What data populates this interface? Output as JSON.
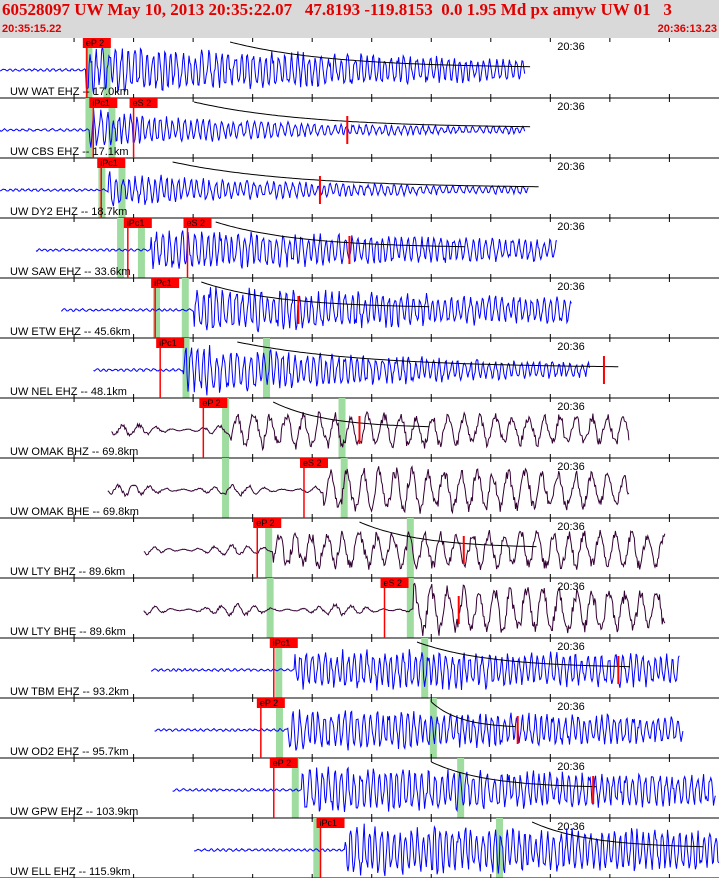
{
  "header": {
    "title": "60528097 UW May 10, 2013 20:35:22.07   47.8193 -119.8153  0.0 1.95 Md px amyw UW 01   3",
    "start_time": "20:35:15.22",
    "end_time": "20:36:13.23"
  },
  "colors": {
    "header_bg": "#d9d9d9",
    "header_text": "#e00000",
    "trace_ehz": "#0000ff",
    "trace_bh": "#330033",
    "pick_marker": "#ff0000",
    "phase_window": "#9fdc9f",
    "decay_curve": "#000000",
    "axis": "#000000"
  },
  "time_tick_label": "20:36",
  "traces": [
    {
      "label": "UW WAT EHZ -- 17.0km",
      "type": "ehz",
      "picks": [
        {
          "text": "eP 2",
          "t": 0.118
        }
      ],
      "green": [
        0.123,
        0.148
      ],
      "sig": [
        0.0,
        0.73
      ],
      "onset": 0.12,
      "amp": 1.0,
      "decay": 0.9,
      "curve": [
        0.32,
        0.74
      ]
    },
    {
      "label": "UW CBS EHZ -- 17.1km",
      "type": "ehz",
      "picks": [
        {
          "text": "iPc1",
          "t": 0.127
        },
        {
          "text": "eS 2",
          "t": 0.183
        }
      ],
      "green": [
        0.123,
        0.155
      ],
      "sig": [
        0.0,
        0.73
      ],
      "onset": 0.125,
      "amp": 0.8,
      "decay": 2.8,
      "curve": [
        0.27,
        0.74
      ],
      "tail": 0.483
    },
    {
      "label": "UW DY2 EHZ -- 18.7km",
      "type": "ehz",
      "picks": [
        {
          "text": "iPc1",
          "t": 0.138
        }
      ],
      "green": [
        0.141,
        0.169
      ],
      "sig": [
        0.0,
        0.735
      ],
      "onset": 0.15,
      "amp": 0.7,
      "decay": 2.5,
      "curve": [
        0.24,
        0.75
      ],
      "tail": 0.445
    },
    {
      "label": "UW SAW EHZ -- 33.6km",
      "type": "ehz",
      "picks": [
        {
          "text": "iPc1",
          "t": 0.175
        },
        {
          "text": "eS 2",
          "t": 0.258
        }
      ],
      "green": [
        0.167,
        0.196
      ],
      "sig": [
        0.05,
        0.775
      ],
      "onset": 0.21,
      "amp": 0.8,
      "decay": 0.8,
      "curve": [
        0.3,
        0.65
      ],
      "tail": 0.486
    },
    {
      "label": "UW ETW EHZ -- 45.6km",
      "type": "ehz",
      "picks": [
        {
          "text": "iPc1",
          "t": 0.213
        }
      ],
      "green": [
        0.217,
        0.257
      ],
      "sig": [
        0.085,
        0.795
      ],
      "onset": 0.27,
      "amp": 0.9,
      "decay": 0.7,
      "curve": [
        0.28,
        0.6
      ],
      "tail": 0.415
    },
    {
      "label": "UW NEL EHZ -- 48.1km",
      "type": "ehz",
      "picks": [
        {
          "text": "iPc1",
          "t": 0.22
        }
      ],
      "green": [
        0.258,
        0.37
      ],
      "sig": [
        0.13,
        0.82
      ],
      "onset": 0.255,
      "amp": 1.0,
      "decay": 1.4,
      "curve": [
        0.33,
        0.86
      ],
      "tail": 0.84
    },
    {
      "label": "UW OMAK BHZ -- 69.8km",
      "type": "bh",
      "picks": [
        {
          "text": "eP 2",
          "t": 0.28
        }
      ],
      "green": [
        0.313,
        0.475
      ],
      "sig": [
        0.155,
        0.875
      ],
      "onset": 0.32,
      "amp": 0.7,
      "decay": 0.2,
      "curve": [
        0.38,
        0.6
      ],
      "tail": 0.5
    },
    {
      "label": "UW OMAK BHE -- 69.8km",
      "type": "bh",
      "picks": [
        {
          "text": "eS 2",
          "t": 0.42
        }
      ],
      "green": [
        0.313,
        0.478
      ],
      "sig": [
        0.15,
        0.875
      ],
      "onset": 0.45,
      "amp": 0.9,
      "decay": 0.2
    },
    {
      "label": "UW LTY BHZ -- 89.6km",
      "type": "bh",
      "picks": [
        {
          "text": "eP 2",
          "t": 0.355
        }
      ],
      "green": [
        0.373,
        0.57
      ],
      "sig": [
        0.2,
        0.925
      ],
      "onset": 0.38,
      "amp": 0.7,
      "decay": 0.0,
      "curve": [
        0.5,
        0.75
      ],
      "tail": 0.645
    },
    {
      "label": "UW LTY BHE -- 89.6km",
      "type": "bh",
      "picks": [
        {
          "text": "eS 2",
          "t": 0.532
        }
      ],
      "green": [
        0.375,
        0.57
      ],
      "sig": [
        0.2,
        0.925
      ],
      "onset": 0.575,
      "amp": 1.0,
      "decay": 0.3,
      "tail": 0.638
    },
    {
      "label": "UW TBM EHZ -- 93.2km",
      "type": "ehz",
      "picks": [
        {
          "text": "iPc1",
          "t": 0.378
        }
      ],
      "green": [
        0.387,
        0.59
      ],
      "sig": [
        0.21,
        0.945
      ],
      "onset": 0.41,
      "amp": 0.8,
      "decay": 0.3,
      "curve": [
        0.58,
        0.88
      ],
      "tail": 0.86
    },
    {
      "label": "UW OD2 EHZ -- 95.7km",
      "type": "ehz",
      "picks": [
        {
          "text": "eP 2",
          "t": 0.36
        }
      ],
      "green": [
        0.388,
        0.602
      ],
      "sig": [
        0.215,
        0.95
      ],
      "onset": 0.4,
      "amp": 0.8,
      "decay": 0.5,
      "curve": [
        0.6,
        0.72
      ],
      "tail": 0.72
    },
    {
      "label": "UW GPW EHZ -- 103.9km",
      "type": "ehz",
      "picks": [
        {
          "text": "eP 2",
          "t": 0.378
        }
      ],
      "green": [
        0.41,
        0.64
      ],
      "sig": [
        0.24,
        0.995
      ],
      "onset": 0.42,
      "amp": 0.9,
      "decay": 0.5,
      "curve": [
        0.6,
        0.83
      ],
      "tail": 0.825
    },
    {
      "label": "UW ELL EHZ -- 115.9km",
      "type": "ehz",
      "picks": [
        {
          "text": "iPc1",
          "t": 0.443
        }
      ],
      "green": [
        0.44,
        0.694
      ],
      "sig": [
        0.27,
        1.0
      ],
      "onset": 0.48,
      "amp": 1.0,
      "decay": 0.3,
      "curve": [
        0.74,
        0.98
      ]
    }
  ]
}
